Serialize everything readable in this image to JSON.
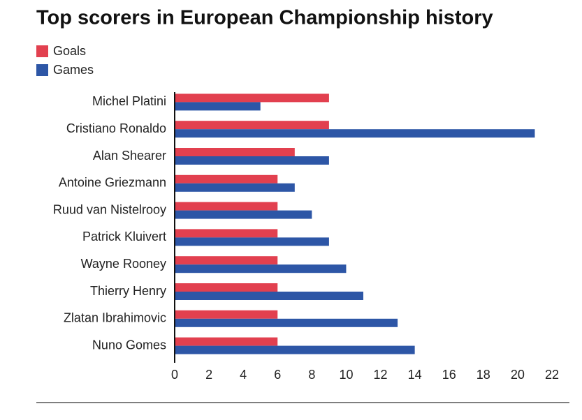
{
  "chart_data": {
    "type": "barh",
    "title": "Top scorers in European Championship history",
    "categories": [
      "Michel Platini",
      "Cristiano Ronaldo",
      "Alan Shearer",
      "Antoine Griezmann",
      "Ruud van Nistelrooy",
      "Patrick Kluivert",
      "Wayne Rooney",
      "Thierry Henry",
      "Zlatan Ibrahimovic",
      "Nuno Gomes"
    ],
    "series": [
      {
        "name": "Goals",
        "color": "#e2404f",
        "values": [
          9,
          9,
          7,
          6,
          6,
          6,
          6,
          6,
          6,
          6
        ]
      },
      {
        "name": "Games",
        "color": "#2d56a6",
        "values": [
          5,
          21,
          9,
          7,
          8,
          9,
          10,
          11,
          13,
          14
        ]
      }
    ],
    "xlim": [
      0,
      22
    ],
    "xticks": [
      0,
      2,
      4,
      6,
      8,
      10,
      12,
      14,
      16,
      18,
      20,
      22
    ],
    "grid": false,
    "legend": "top-left"
  }
}
